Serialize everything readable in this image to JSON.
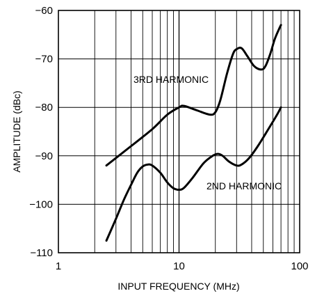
{
  "chart_data": {
    "type": "line",
    "title": "",
    "xlabel": "INPUT FREQUENCY (MHz)",
    "ylabel": "AMPLITUDE (dBc)",
    "x_scale": "log",
    "xlim": [
      1,
      100
    ],
    "ylim": [
      -110,
      -60
    ],
    "x_ticks": [
      1,
      10,
      100
    ],
    "x_tick_labels": [
      "1",
      "10",
      "100"
    ],
    "y_ticks": [
      -60,
      -70,
      -80,
      -90,
      -100,
      -110
    ],
    "y_tick_labels": [
      "−60",
      "−70",
      "−80",
      "−90",
      "−100",
      "−110"
    ],
    "grid": true,
    "legend": "none",
    "series": [
      {
        "name": "3RD HARMONIC",
        "x": [
          2.5,
          4,
          6,
          8,
          10,
          11,
          14,
          18,
          20,
          22,
          25,
          28,
          30,
          33,
          37,
          42,
          48,
          52,
          57,
          62,
          67,
          70
        ],
        "y": [
          -92,
          -88,
          -84.5,
          -81.5,
          -80,
          -79.7,
          -80.6,
          -81.5,
          -81,
          -78.5,
          -73,
          -69,
          -68,
          -67.8,
          -69.5,
          -71.5,
          -72.2,
          -71.5,
          -69,
          -66,
          -64,
          -63
        ]
      },
      {
        "name": "2ND HARMONIC",
        "x": [
          2.5,
          3,
          3.5,
          4,
          4.5,
          5,
          5.5,
          6,
          7,
          8,
          9,
          10,
          11,
          13,
          16,
          19,
          21,
          23,
          26,
          30,
          33,
          38,
          45,
          55,
          65,
          70
        ],
        "y": [
          -107.5,
          -103,
          -99,
          -96,
          -93.5,
          -92.2,
          -91.8,
          -92,
          -93.5,
          -95.5,
          -96.7,
          -97,
          -96.6,
          -94.5,
          -91.5,
          -90,
          -89.6,
          -90,
          -91.2,
          -92,
          -91.8,
          -90.5,
          -88,
          -84.5,
          -81.5,
          -80
        ]
      }
    ]
  }
}
